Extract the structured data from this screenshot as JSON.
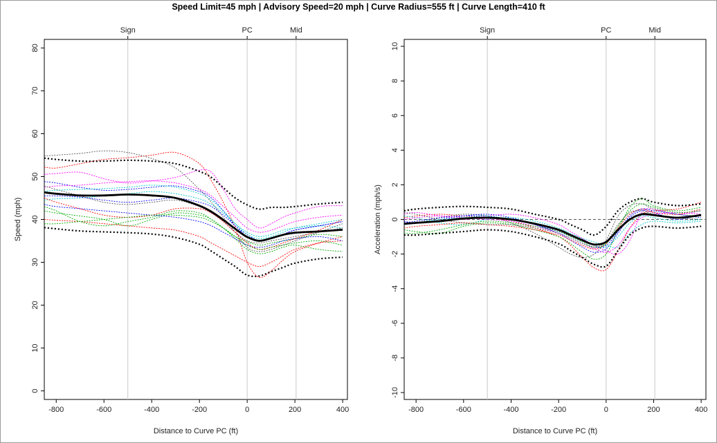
{
  "title": "Speed Limit=45 mph | Advisory Speed=20 mph | Curve Radius=555 ft | Curve Length=410 ft",
  "chart_data": [
    {
      "type": "line",
      "xlabel": "Distance to Curve PC (ft)",
      "ylabel": "Speed (mph)",
      "xlim": [
        -850,
        420
      ],
      "ylim": [
        -2,
        82
      ],
      "xticks": [
        -800,
        -600,
        -400,
        -200,
        0,
        200,
        400
      ],
      "yticks": [
        0,
        10,
        20,
        30,
        40,
        50,
        60,
        70,
        80
      ],
      "markers": [
        {
          "label": "Sign",
          "x": -500
        },
        {
          "label": "PC",
          "x": 0
        },
        {
          "label": "Mid",
          "x": 205
        }
      ],
      "mean": {
        "x": [
          -850,
          -800,
          -700,
          -600,
          -500,
          -400,
          -300,
          -200,
          -150,
          -100,
          -50,
          0,
          50,
          100,
          150,
          200,
          300,
          400
        ],
        "y": [
          46.3,
          46.0,
          45.6,
          45.6,
          45.8,
          45.6,
          45.0,
          43.2,
          41.8,
          39.9,
          37.8,
          35.9,
          35.0,
          35.6,
          36.4,
          36.9,
          37.2,
          37.6
        ]
      },
      "upper_band": {
        "x": [
          -850,
          -800,
          -700,
          -600,
          -500,
          -400,
          -300,
          -200,
          -150,
          -100,
          -50,
          0,
          50,
          100,
          150,
          200,
          300,
          400
        ],
        "y": [
          54.3,
          54.0,
          53.6,
          53.6,
          53.8,
          53.6,
          53.0,
          51.2,
          49.8,
          47.4,
          45.0,
          43.4,
          42.4,
          42.8,
          42.8,
          43.0,
          43.6,
          44.0
        ]
      },
      "lower_band": {
        "x": [
          -850,
          -800,
          -700,
          -600,
          -500,
          -400,
          -300,
          -200,
          -150,
          -100,
          -50,
          0,
          50,
          100,
          150,
          200,
          300,
          400
        ],
        "y": [
          38.1,
          37.8,
          37.3,
          37.1,
          36.9,
          36.6,
          35.8,
          34.2,
          32.6,
          30.8,
          29.0,
          27.0,
          26.8,
          27.8,
          28.8,
          29.8,
          30.8,
          31.2
        ]
      },
      "series": [
        {
          "color": "#ff0000",
          "y": [
            52.2,
            52.0,
            53.0,
            54.0,
            54.4,
            55.0,
            55.6,
            53.0,
            49.0,
            44.0,
            38.0,
            30.0,
            26.5,
            28.0,
            30.5,
            32.5,
            34.5,
            36.0
          ]
        },
        {
          "color": "#ff00ff",
          "y": [
            50.5,
            50.7,
            51.0,
            49.5,
            48.5,
            49.0,
            49.8,
            51.5,
            51.0,
            47.0,
            42.5,
            40.0,
            38.0,
            39.0,
            40.5,
            41.5,
            43.0,
            43.2
          ]
        },
        {
          "color": "#555555",
          "y": [
            54.8,
            55.0,
            55.4,
            56.0,
            55.6,
            54.2,
            52.0,
            47.0,
            44.0,
            40.5,
            37.0,
            33.5,
            32.5,
            33.0,
            34.0,
            35.0,
            37.0,
            39.0
          ]
        },
        {
          "color": "#0000ff",
          "y": [
            48.8,
            48.5,
            47.5,
            46.8,
            47.0,
            47.5,
            47.8,
            46.5,
            45.0,
            42.0,
            38.5,
            36.5,
            35.0,
            35.5,
            36.5,
            37.5,
            38.5,
            39.5
          ]
        },
        {
          "color": "#00aa00",
          "y": [
            42.0,
            41.5,
            40.8,
            40.0,
            38.5,
            40.0,
            41.5,
            41.0,
            40.0,
            38.0,
            36.0,
            34.8,
            34.0,
            34.5,
            35.0,
            35.5,
            36.5,
            36.0
          ]
        },
        {
          "color": "#00c8c8",
          "y": [
            44.5,
            44.8,
            45.0,
            45.5,
            46.0,
            46.5,
            46.0,
            44.8,
            43.5,
            41.5,
            39.0,
            37.0,
            36.0,
            36.5,
            37.5,
            38.0,
            38.5,
            38.0
          ]
        },
        {
          "color": "#ff0000",
          "y": [
            40.0,
            39.8,
            39.5,
            39.0,
            38.5,
            38.0,
            37.5,
            36.0,
            34.5,
            33.0,
            31.5,
            30.0,
            29.0,
            30.0,
            31.5,
            33.0,
            34.5,
            35.0
          ]
        },
        {
          "color": "#0000ff",
          "y": [
            45.5,
            45.5,
            45.2,
            44.5,
            44.0,
            44.5,
            45.0,
            44.0,
            43.0,
            41.0,
            38.5,
            36.0,
            35.0,
            35.5,
            36.5,
            37.5,
            38.5,
            39.5
          ]
        },
        {
          "color": "#00aa00",
          "y": [
            43.0,
            42.0,
            39.5,
            38.5,
            39.5,
            40.5,
            42.0,
            41.5,
            40.0,
            38.0,
            35.5,
            33.0,
            32.0,
            32.5,
            33.5,
            34.0,
            33.0,
            32.5
          ]
        },
        {
          "color": "#ff00ff",
          "y": [
            47.5,
            47.8,
            48.0,
            48.5,
            48.8,
            49.0,
            48.5,
            47.0,
            45.5,
            43.0,
            40.5,
            38.0,
            37.0,
            37.5,
            38.5,
            39.5,
            40.5,
            41.0
          ]
        },
        {
          "color": "#555555",
          "y": [
            47.8,
            47.0,
            45.5,
            44.0,
            43.5,
            44.0,
            44.5,
            43.0,
            41.5,
            39.5,
            37.0,
            35.0,
            34.5,
            35.0,
            35.5,
            36.0,
            37.0,
            38.0
          ]
        },
        {
          "color": "#0000ff",
          "y": [
            43.5,
            43.0,
            42.5,
            42.0,
            41.5,
            41.0,
            40.5,
            39.5,
            38.5,
            37.0,
            35.5,
            34.0,
            33.5,
            34.0,
            35.0,
            35.5,
            36.0,
            35.0
          ]
        },
        {
          "color": "#00c8c8",
          "y": [
            46.5,
            46.8,
            47.0,
            47.2,
            47.5,
            48.0,
            47.5,
            46.0,
            44.5,
            42.0,
            39.0,
            36.5,
            35.5,
            36.0,
            37.0,
            38.0,
            39.0,
            40.0
          ]
        },
        {
          "color": "#ff0000",
          "y": [
            45.0,
            44.0,
            42.5,
            41.0,
            40.5,
            41.0,
            42.5,
            42.5,
            41.5,
            39.5,
            37.0,
            34.5,
            33.0,
            33.5,
            34.5,
            35.5,
            37.5,
            40.0
          ]
        },
        {
          "color": "#00aa00",
          "y": [
            39.0,
            39.0,
            39.5,
            40.0,
            40.5,
            41.0,
            41.0,
            40.5,
            39.5,
            38.0,
            36.0,
            34.0,
            33.0,
            33.5,
            34.0,
            34.5,
            35.0,
            34.0
          ]
        }
      ]
    },
    {
      "type": "line",
      "xlabel": "Distance to Curve PC (ft)",
      "ylabel": "Acceleration (mph/s)",
      "xlim": [
        -850,
        420
      ],
      "ylim": [
        -10.4,
        10.4
      ],
      "xticks": [
        -800,
        -600,
        -400,
        -200,
        0,
        200,
        400
      ],
      "yticks": [
        -10,
        -8,
        -6,
        -4,
        -2,
        0,
        2,
        4,
        6,
        8,
        10
      ],
      "zero_line": 0,
      "markers": [
        {
          "label": "Sign",
          "x": -500
        },
        {
          "label": "PC",
          "x": 0
        },
        {
          "label": "Mid",
          "x": 205
        }
      ],
      "mean": {
        "x": [
          -850,
          -800,
          -700,
          -600,
          -500,
          -400,
          -300,
          -200,
          -150,
          -100,
          -50,
          0,
          50,
          100,
          150,
          200,
          300,
          400
        ],
        "y": [
          -0.25,
          -0.2,
          -0.1,
          0.05,
          0.1,
          0.0,
          -0.25,
          -0.6,
          -0.9,
          -1.2,
          -1.45,
          -1.3,
          -0.6,
          0.0,
          0.3,
          0.25,
          0.1,
          0.25
        ]
      },
      "upper_band": {
        "x": [
          -850,
          -800,
          -700,
          -600,
          -500,
          -400,
          -300,
          -200,
          -150,
          -100,
          -50,
          0,
          50,
          100,
          150,
          200,
          300,
          400
        ],
        "y": [
          0.5,
          0.6,
          0.7,
          0.75,
          0.7,
          0.6,
          0.3,
          0.0,
          -0.3,
          -0.6,
          -0.9,
          -0.4,
          0.5,
          1.0,
          1.2,
          1.0,
          0.8,
          0.9
        ]
      },
      "lower_band": {
        "x": [
          -850,
          -800,
          -700,
          -600,
          -500,
          -400,
          -300,
          -200,
          -150,
          -100,
          -50,
          0,
          50,
          100,
          150,
          200,
          300,
          400
        ],
        "y": [
          -0.9,
          -0.9,
          -0.8,
          -0.7,
          -0.6,
          -0.7,
          -1.0,
          -1.4,
          -1.8,
          -2.2,
          -2.6,
          -2.7,
          -1.8,
          -0.9,
          -0.5,
          -0.4,
          -0.5,
          -0.4
        ]
      },
      "series": [
        {
          "color": "#ff0000",
          "y": [
            0.1,
            0.2,
            0.3,
            0.2,
            0.1,
            -0.1,
            -0.5,
            -1.0,
            -1.5,
            -2.2,
            -2.8,
            -2.9,
            -1.8,
            -0.5,
            0.3,
            0.5,
            0.6,
            1.0
          ]
        },
        {
          "color": "#ff00ff",
          "y": [
            0.3,
            0.4,
            0.2,
            0.0,
            0.2,
            0.3,
            0.1,
            -0.3,
            -0.7,
            -1.1,
            -1.5,
            -1.8,
            -2.0,
            -1.2,
            0.4,
            0.6,
            0.3,
            0.5
          ]
        },
        {
          "color": "#555555",
          "y": [
            -0.3,
            -0.2,
            0.1,
            0.3,
            0.2,
            -0.2,
            -0.8,
            -1.6,
            -2.0,
            -2.2,
            -2.0,
            -1.2,
            0.2,
            0.8,
            0.9,
            0.6,
            0.3,
            0.2
          ]
        },
        {
          "color": "#0000ff",
          "y": [
            -0.1,
            -0.2,
            0.0,
            0.2,
            0.3,
            0.1,
            -0.3,
            -0.8,
            -1.2,
            -1.6,
            -1.9,
            -1.7,
            -0.8,
            0.1,
            0.5,
            0.4,
            0.0,
            0.3
          ]
        },
        {
          "color": "#00aa00",
          "y": [
            -0.6,
            -0.7,
            -0.8,
            -0.4,
            -0.2,
            -0.3,
            -0.6,
            -1.0,
            -1.4,
            -1.9,
            -2.3,
            -2.0,
            -0.6,
            0.7,
            1.2,
            0.8,
            0.5,
            0.7
          ]
        },
        {
          "color": "#00c8c8",
          "y": [
            0.2,
            0.1,
            -0.2,
            -0.3,
            0.0,
            0.1,
            -0.1,
            -0.5,
            -0.8,
            -1.1,
            -1.3,
            -1.5,
            -1.6,
            -0.8,
            -0.3,
            -0.1,
            -0.2,
            -0.1
          ]
        },
        {
          "color": "#ff0000",
          "y": [
            -0.5,
            -0.4,
            -0.3,
            -0.2,
            -0.3,
            -0.4,
            -0.6,
            -0.9,
            -1.2,
            -1.5,
            -1.7,
            -1.4,
            -0.5,
            0.3,
            0.6,
            0.4,
            0.3,
            0.6
          ]
        },
        {
          "color": "#0000ff",
          "y": [
            -0.2,
            -0.1,
            0.1,
            0.2,
            0.2,
            0.0,
            -0.3,
            -0.7,
            -1.0,
            -1.3,
            -1.6,
            -1.5,
            -0.7,
            0.2,
            0.6,
            0.5,
            0.3,
            0.1
          ]
        },
        {
          "color": "#ff00ff",
          "y": [
            0.0,
            0.1,
            0.2,
            0.1,
            0.0,
            -0.1,
            -0.4,
            -0.8,
            -1.1,
            -1.4,
            -1.7,
            -1.9,
            -1.5,
            -0.5,
            0.1,
            0.3,
            0.4,
            0.3
          ]
        },
        {
          "color": "#00aa00",
          "y": [
            -0.8,
            -0.8,
            -0.6,
            -0.3,
            -0.1,
            -0.2,
            -0.4,
            -0.7,
            -1.0,
            -1.3,
            -1.6,
            -1.4,
            -0.4,
            0.5,
            0.9,
            0.7,
            0.4,
            0.5
          ]
        },
        {
          "color": "#555555",
          "y": [
            0.4,
            0.3,
            0.0,
            -0.2,
            -0.3,
            -0.3,
            -0.5,
            -0.8,
            -1.1,
            -1.4,
            -1.6,
            -1.3,
            -0.3,
            0.4,
            0.5,
            0.3,
            0.1,
            0.0
          ]
        },
        {
          "color": "#00c8c8",
          "y": [
            -0.3,
            -0.2,
            0.0,
            0.1,
            0.2,
            0.0,
            -0.2,
            -0.6,
            -0.9,
            -1.2,
            -1.5,
            -1.6,
            -1.0,
            -0.2,
            0.2,
            0.1,
            -0.1,
            0.0
          ]
        }
      ]
    }
  ]
}
